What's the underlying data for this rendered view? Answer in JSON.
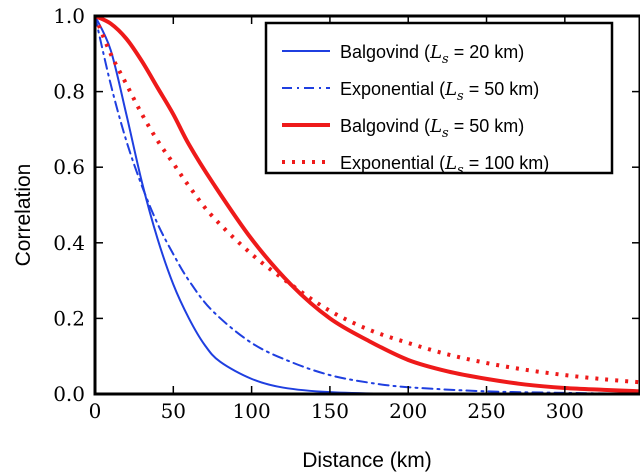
{
  "chart_data": {
    "type": "line",
    "xlabel": "Distance (km)",
    "ylabel": "Correlation",
    "xlim": [
      0,
      348
    ],
    "ylim": [
      0,
      1.0
    ],
    "x_ticks": [
      0,
      50,
      100,
      150,
      200,
      250,
      300
    ],
    "x_tick_labels": [
      "0",
      "50",
      "100",
      "150",
      "200",
      "250",
      "300"
    ],
    "y_ticks": [
      0.0,
      0.2,
      0.4,
      0.6,
      0.8,
      1.0
    ],
    "y_tick_labels": [
      "0.0",
      "0.2",
      "0.4",
      "0.6",
      "0.8",
      "1.0"
    ],
    "grid": false,
    "legend_position": "top-right",
    "series": [
      {
        "name": "Balgovind (L_s = 20 km)",
        "legend_prefix": "Balgovind (",
        "legend_L": "L",
        "legend_sub": "s",
        "legend_suffix": " = 20 km)",
        "color": "#1f3fe0",
        "style": "solid",
        "width": 2,
        "x": [
          0,
          10,
          20,
          30,
          40,
          50,
          60,
          70,
          80,
          100,
          120,
          150,
          200,
          250,
          300,
          348
        ],
        "y": [
          1.0,
          0.91,
          0.74,
          0.56,
          0.41,
          0.29,
          0.2,
          0.13,
          0.085,
          0.04,
          0.017,
          0.005,
          0.0,
          0.0,
          0.0,
          0.0
        ]
      },
      {
        "name": "Exponential (L_s = 50 km)",
        "legend_prefix": "Exponential (",
        "legend_L": "L",
        "legend_sub": "s",
        "legend_suffix": " = 50 km)",
        "color": "#1f3fe0",
        "style": "dashdot",
        "width": 2,
        "x": [
          0,
          10,
          20,
          30,
          40,
          50,
          60,
          75,
          100,
          125,
          150,
          175,
          200,
          250,
          300,
          348
        ],
        "y": [
          1.0,
          0.82,
          0.67,
          0.55,
          0.45,
          0.37,
          0.3,
          0.22,
          0.135,
          0.085,
          0.05,
          0.03,
          0.018,
          0.007,
          0.003,
          0.0
        ]
      },
      {
        "name": "Balgovind (L_s = 50 km)",
        "legend_prefix": "Balgovind (",
        "legend_L": "L",
        "legend_sub": "s",
        "legend_suffix": " = 50 km)",
        "color": "#ee1a1a",
        "style": "solid",
        "width": 4,
        "x": [
          0,
          10,
          20,
          30,
          40,
          50,
          60,
          75,
          100,
          125,
          150,
          175,
          200,
          225,
          250,
          275,
          300,
          325,
          348
        ],
        "y": [
          1.0,
          0.98,
          0.94,
          0.88,
          0.81,
          0.74,
          0.66,
          0.56,
          0.41,
          0.29,
          0.2,
          0.14,
          0.09,
          0.06,
          0.04,
          0.025,
          0.016,
          0.011,
          0.007
        ]
      },
      {
        "name": "Exponential (L_s = 100 km)",
        "legend_prefix": "Exponential (",
        "legend_L": "L",
        "legend_sub": "s",
        "legend_suffix": " = 100 km)",
        "color": "#ee1a1a",
        "style": "dotted",
        "width": 4,
        "x": [
          0,
          10,
          20,
          30,
          40,
          50,
          60,
          75,
          100,
          125,
          150,
          175,
          200,
          225,
          250,
          275,
          300,
          325,
          348
        ],
        "y": [
          1.0,
          0.9,
          0.82,
          0.74,
          0.67,
          0.61,
          0.55,
          0.47,
          0.37,
          0.29,
          0.22,
          0.17,
          0.135,
          0.105,
          0.082,
          0.064,
          0.05,
          0.039,
          0.031
        ]
      }
    ]
  }
}
